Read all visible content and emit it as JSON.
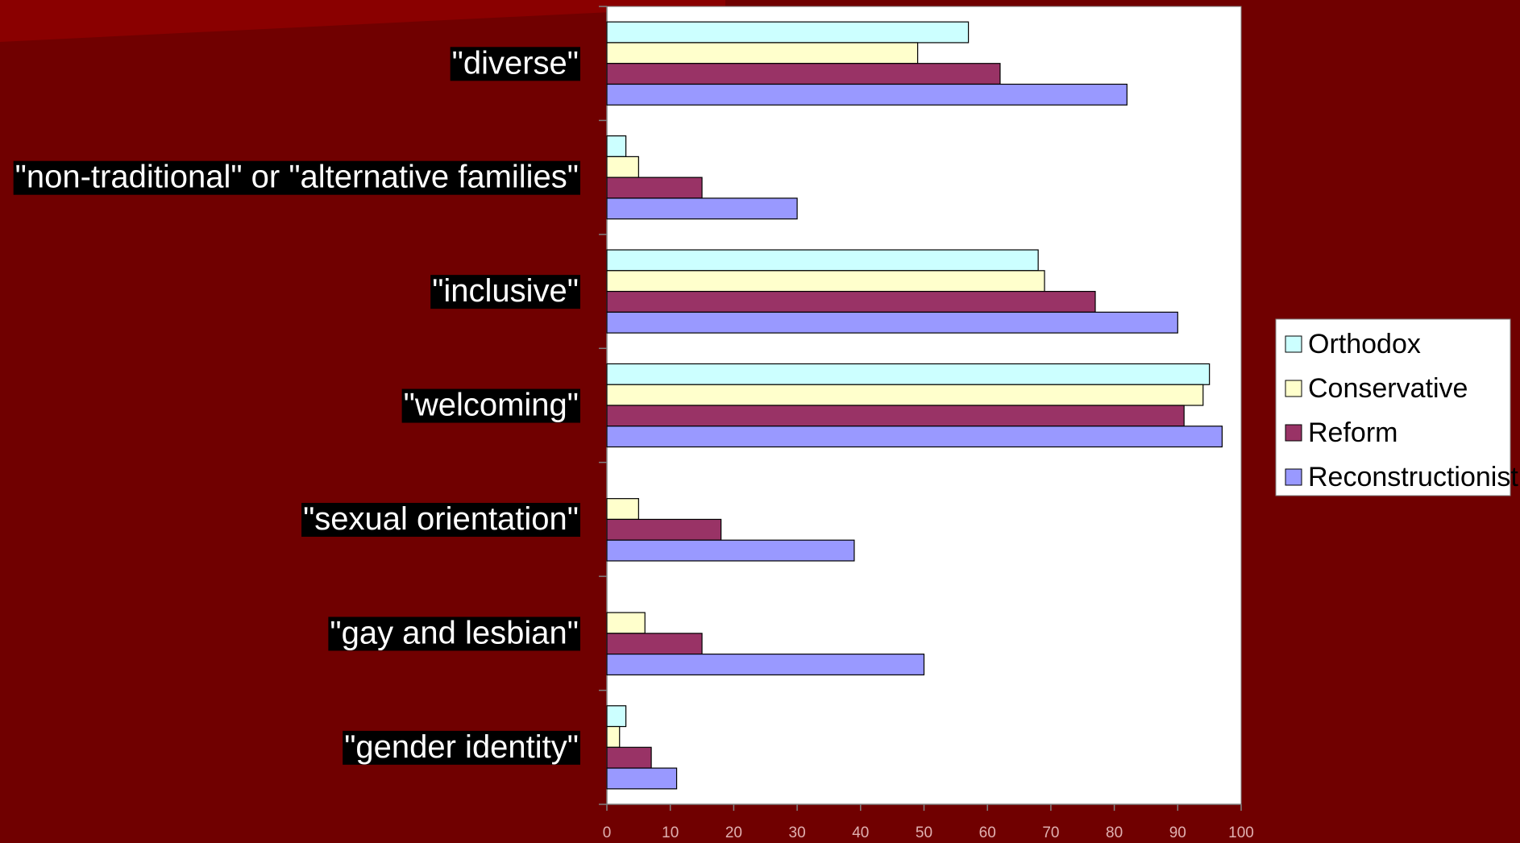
{
  "chart_data": {
    "type": "bar",
    "orientation": "horizontal",
    "categories": [
      "\"diverse\"",
      "\"non-traditional\" or \"alternative families\"",
      "\"inclusive\"",
      "\"welcoming\"",
      "\"sexual orientation\"",
      "\"gay and lesbian\"",
      "\"gender identity\""
    ],
    "series": [
      {
        "name": "Orthodox",
        "color": "#ccffff",
        "values": [
          57,
          3,
          68,
          95,
          0,
          0,
          3
        ]
      },
      {
        "name": "Conservative",
        "color": "#ffffcc",
        "values": [
          49,
          5,
          69,
          94,
          5,
          6,
          2
        ]
      },
      {
        "name": "Reform",
        "color": "#993366",
        "values": [
          62,
          15,
          77,
          91,
          18,
          15,
          7
        ]
      },
      {
        "name": "Reconstructionist",
        "color": "#9999ff",
        "values": [
          82,
          30,
          90,
          97,
          39,
          50,
          11
        ]
      }
    ],
    "xlim": [
      0,
      100
    ],
    "xticks": [
      0,
      10,
      20,
      30,
      40,
      50,
      60,
      70,
      80,
      90,
      100
    ],
    "legend": "right",
    "grid": false
  }
}
